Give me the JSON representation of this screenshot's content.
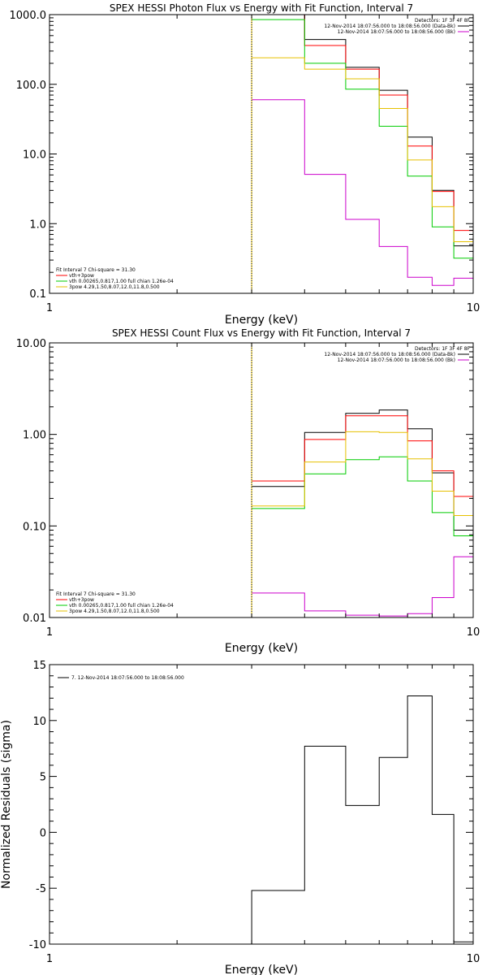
{
  "chart_data": [
    {
      "type": "line",
      "title": "SPEX HESSI Photon Flux vs Energy with Fit Function, Interval 7",
      "xlabel": "Energy (keV)",
      "ylabel": "",
      "xscale": "log",
      "yscale": "log",
      "xlim": [
        1,
        10
      ],
      "ylim": [
        0.1,
        1000
      ],
      "x_ticks": [
        "1",
        "10"
      ],
      "y_ticks": [
        "0.1",
        "1.0",
        "10.0",
        "100.0",
        "1000.0"
      ],
      "fit_start": 3,
      "detectors_text": "Detectors: 1F 3F 4F 8F",
      "data_legend": [
        {
          "text": "12-Nov-2014 18:07:56.000 to 18:08:56.000 (Data-Bk)",
          "color": "#000000"
        },
        {
          "text": "12-Nov-2014 18:07:56.000 to 18:08:56.000 (Bk)",
          "color": "#cc00cc"
        }
      ],
      "fit_legend": [
        {
          "text": "Fit Interval 7   Chi-square = 31.30",
          "color": null
        },
        {
          "text": "vth+3pow",
          "color": "#ff0000"
        },
        {
          "text": "vth 0.00265,0.817,1.00  full chian 1.26e-04",
          "color": "#00cc00"
        },
        {
          "text": "3pow 4.29,1.50,8.07,12.0,11.8,0.500",
          "color": "#e6c000"
        }
      ],
      "bin_edges": [
        3.0,
        4.0,
        5.0,
        6.0,
        7.0,
        8.0,
        9.0,
        10.0
      ],
      "series": [
        {
          "name": "Data-Bk",
          "color": "#000000",
          "values": [
            1100,
            440,
            175,
            82,
            17.5,
            3.0,
            0.48
          ]
        },
        {
          "name": "vth+3pow",
          "color": "#ff0000",
          "values": [
            1100,
            360,
            165,
            70,
            13,
            2.9,
            0.8
          ]
        },
        {
          "name": "vth",
          "color": "#00cc00",
          "values": [
            850,
            200,
            85,
            25,
            4.8,
            0.9,
            0.32
          ]
        },
        {
          "name": "3pow",
          "color": "#e6c000",
          "values": [
            240,
            165,
            120,
            45,
            8.2,
            1.75,
            0.55
          ]
        },
        {
          "name": "Bk",
          "color": "#cc00cc",
          "values": [
            60,
            5.1,
            1.15,
            0.47,
            0.17,
            0.13,
            0.165
          ]
        }
      ]
    },
    {
      "type": "line",
      "title": "SPEX HESSI Count Flux vs Energy with Fit Function, Interval 7",
      "xlabel": "Energy (keV)",
      "ylabel": "",
      "xscale": "log",
      "yscale": "log",
      "xlim": [
        1,
        10
      ],
      "ylim": [
        0.01,
        10
      ],
      "x_ticks": [
        "1",
        "10"
      ],
      "y_ticks": [
        "0.01",
        "0.10",
        "1.00",
        "10.00"
      ],
      "fit_start": 3,
      "detectors_text": "Detectors: 1F 3F 4F 8F",
      "data_legend": [
        {
          "text": "12-Nov-2014 18:07:56.000 to 18:08:56.000 (Data-Bk)",
          "color": "#000000"
        },
        {
          "text": "12-Nov-2014 18:07:56.000 to 18:08:56.000 (Bk)",
          "color": "#cc00cc"
        }
      ],
      "fit_legend": [
        {
          "text": "Fit Interval 7   Chi-square = 31.30",
          "color": null
        },
        {
          "text": "vth+3pow",
          "color": "#ff0000"
        },
        {
          "text": "vth 0.00265,0.817,1.00  full chian 1.26e-04",
          "color": "#00cc00"
        },
        {
          "text": "3pow 4.29,1.50,8.07,12.0,11.8,0.500",
          "color": "#e6c000"
        }
      ],
      "bin_edges": [
        3.0,
        4.0,
        5.0,
        6.0,
        7.0,
        8.0,
        9.0,
        10.0
      ],
      "series": [
        {
          "name": "Data-Bk",
          "color": "#000000",
          "values": [
            0.27,
            1.05,
            1.7,
            1.85,
            1.15,
            0.38,
            0.09
          ]
        },
        {
          "name": "vth+3pow",
          "color": "#ff0000",
          "values": [
            0.31,
            0.88,
            1.6,
            1.6,
            0.85,
            0.4,
            0.21
          ]
        },
        {
          "name": "vth",
          "color": "#00cc00",
          "values": [
            0.155,
            0.37,
            0.53,
            0.57,
            0.31,
            0.14,
            0.078
          ]
        },
        {
          "name": "3pow",
          "color": "#e6c000",
          "values": [
            0.165,
            0.5,
            1.07,
            1.05,
            0.54,
            0.24,
            0.13
          ]
        },
        {
          "name": "Bk",
          "color": "#cc00cc",
          "values": [
            0.0185,
            0.0118,
            0.0106,
            0.0104,
            0.011,
            0.0165,
            0.046
          ]
        }
      ]
    },
    {
      "type": "line",
      "title": "",
      "xlabel": "Energy (keV)",
      "ylabel": "Normalized Residuals (sigma)",
      "xscale": "log",
      "yscale": "linear",
      "xlim": [
        1,
        10
      ],
      "ylim": [
        -10,
        15
      ],
      "x_ticks": [
        "1",
        "10"
      ],
      "y_ticks": [
        "-10",
        "-5",
        "0",
        "5",
        "10",
        "15"
      ],
      "data_legend": [
        {
          "text": "7. 12-Nov-2014 18:07:56.000 to 18:08:56.000",
          "color": "#000000"
        }
      ],
      "bin_edges": [
        3.0,
        4.0,
        5.0,
        6.0,
        7.0,
        8.0,
        9.0,
        10.0
      ],
      "series": [
        {
          "name": "7. 12-Nov-2014 18:07:56.000 to 18:08:56.000",
          "color": "#000000",
          "values": [
            -5.2,
            7.7,
            2.4,
            6.7,
            12.2,
            1.6,
            -9.8
          ]
        }
      ]
    }
  ]
}
